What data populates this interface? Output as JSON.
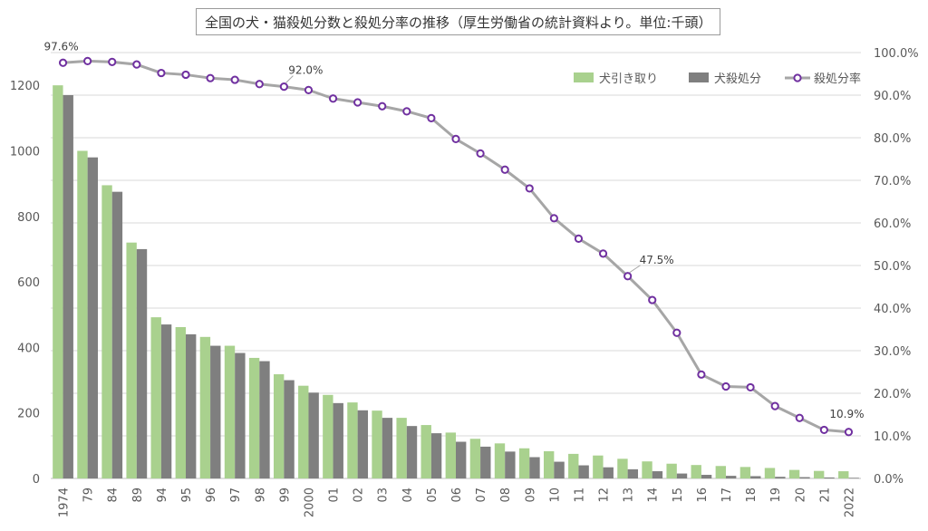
{
  "chart_data": {
    "type": "bar",
    "title": "全国の犬・猫殺処分数と殺処分率の推移（厚生労働省の統計資料より。単位:千頭）",
    "categories": [
      "1974",
      "79",
      "84",
      "89",
      "94",
      "95",
      "96",
      "97",
      "98",
      "99",
      "2000",
      "01",
      "02",
      "03",
      "04",
      "05",
      "06",
      "07",
      "08",
      "09",
      "10",
      "11",
      "12",
      "13",
      "14",
      "15",
      "16",
      "17",
      "18",
      "19",
      "20",
      "21",
      "2022"
    ],
    "series": [
      {
        "name": "犬引き取り",
        "axis": "left",
        "color": "#a9d18e",
        "values": [
          1200,
          1000,
          895,
          720,
          492,
          462,
          432,
          405,
          368,
          318,
          283,
          255,
          232,
          207,
          185,
          163,
          140,
          121,
          107,
          92,
          83,
          75,
          70,
          60,
          52,
          45,
          41,
          38,
          35,
          32,
          26,
          23,
          22
        ]
      },
      {
        "name": "犬殺処分",
        "axis": "left",
        "color": "#7f7f7f",
        "values": [
          1170,
          980,
          875,
          700,
          470,
          440,
          405,
          383,
          358,
          300,
          262,
          230,
          208,
          185,
          160,
          138,
          112,
          97,
          82,
          65,
          51,
          40,
          34,
          28,
          22,
          15,
          11,
          8,
          7,
          5,
          4,
          3,
          2
        ]
      },
      {
        "name": "殺処分率",
        "axis": "right",
        "type": "line",
        "color": "#a6a6a6",
        "marker_color": "#7030a0",
        "values": [
          97.6,
          98.0,
          97.8,
          97.2,
          95.2,
          94.8,
          94.0,
          93.6,
          92.6,
          92.0,
          91.2,
          89.2,
          88.3,
          87.4,
          86.2,
          84.6,
          79.7,
          76.3,
          72.5,
          68.1,
          61.1,
          56.3,
          52.8,
          47.5,
          41.9,
          34.2,
          24.4,
          21.6,
          21.4,
          17.0,
          14.2,
          11.4,
          10.9
        ]
      }
    ],
    "yleft": {
      "min": 0,
      "max": 1300,
      "ticks": [
        0,
        200,
        400,
        600,
        800,
        1000,
        1200
      ]
    },
    "yright": {
      "min": 0,
      "max": 100,
      "ticks": [
        "0.0%",
        "10.0%",
        "20.0%",
        "30.0%",
        "40.0%",
        "50.0%",
        "60.0%",
        "70.0%",
        "80.0%",
        "90.0%",
        "100.0%"
      ]
    },
    "annotations": [
      {
        "index": 0,
        "label": "97.6%"
      },
      {
        "index": 9,
        "label": "92.0%"
      },
      {
        "index": 23,
        "label": "47.5%"
      },
      {
        "index": 32,
        "label": "10.9%"
      }
    ],
    "legend_position": "top-right",
    "grid": true
  }
}
